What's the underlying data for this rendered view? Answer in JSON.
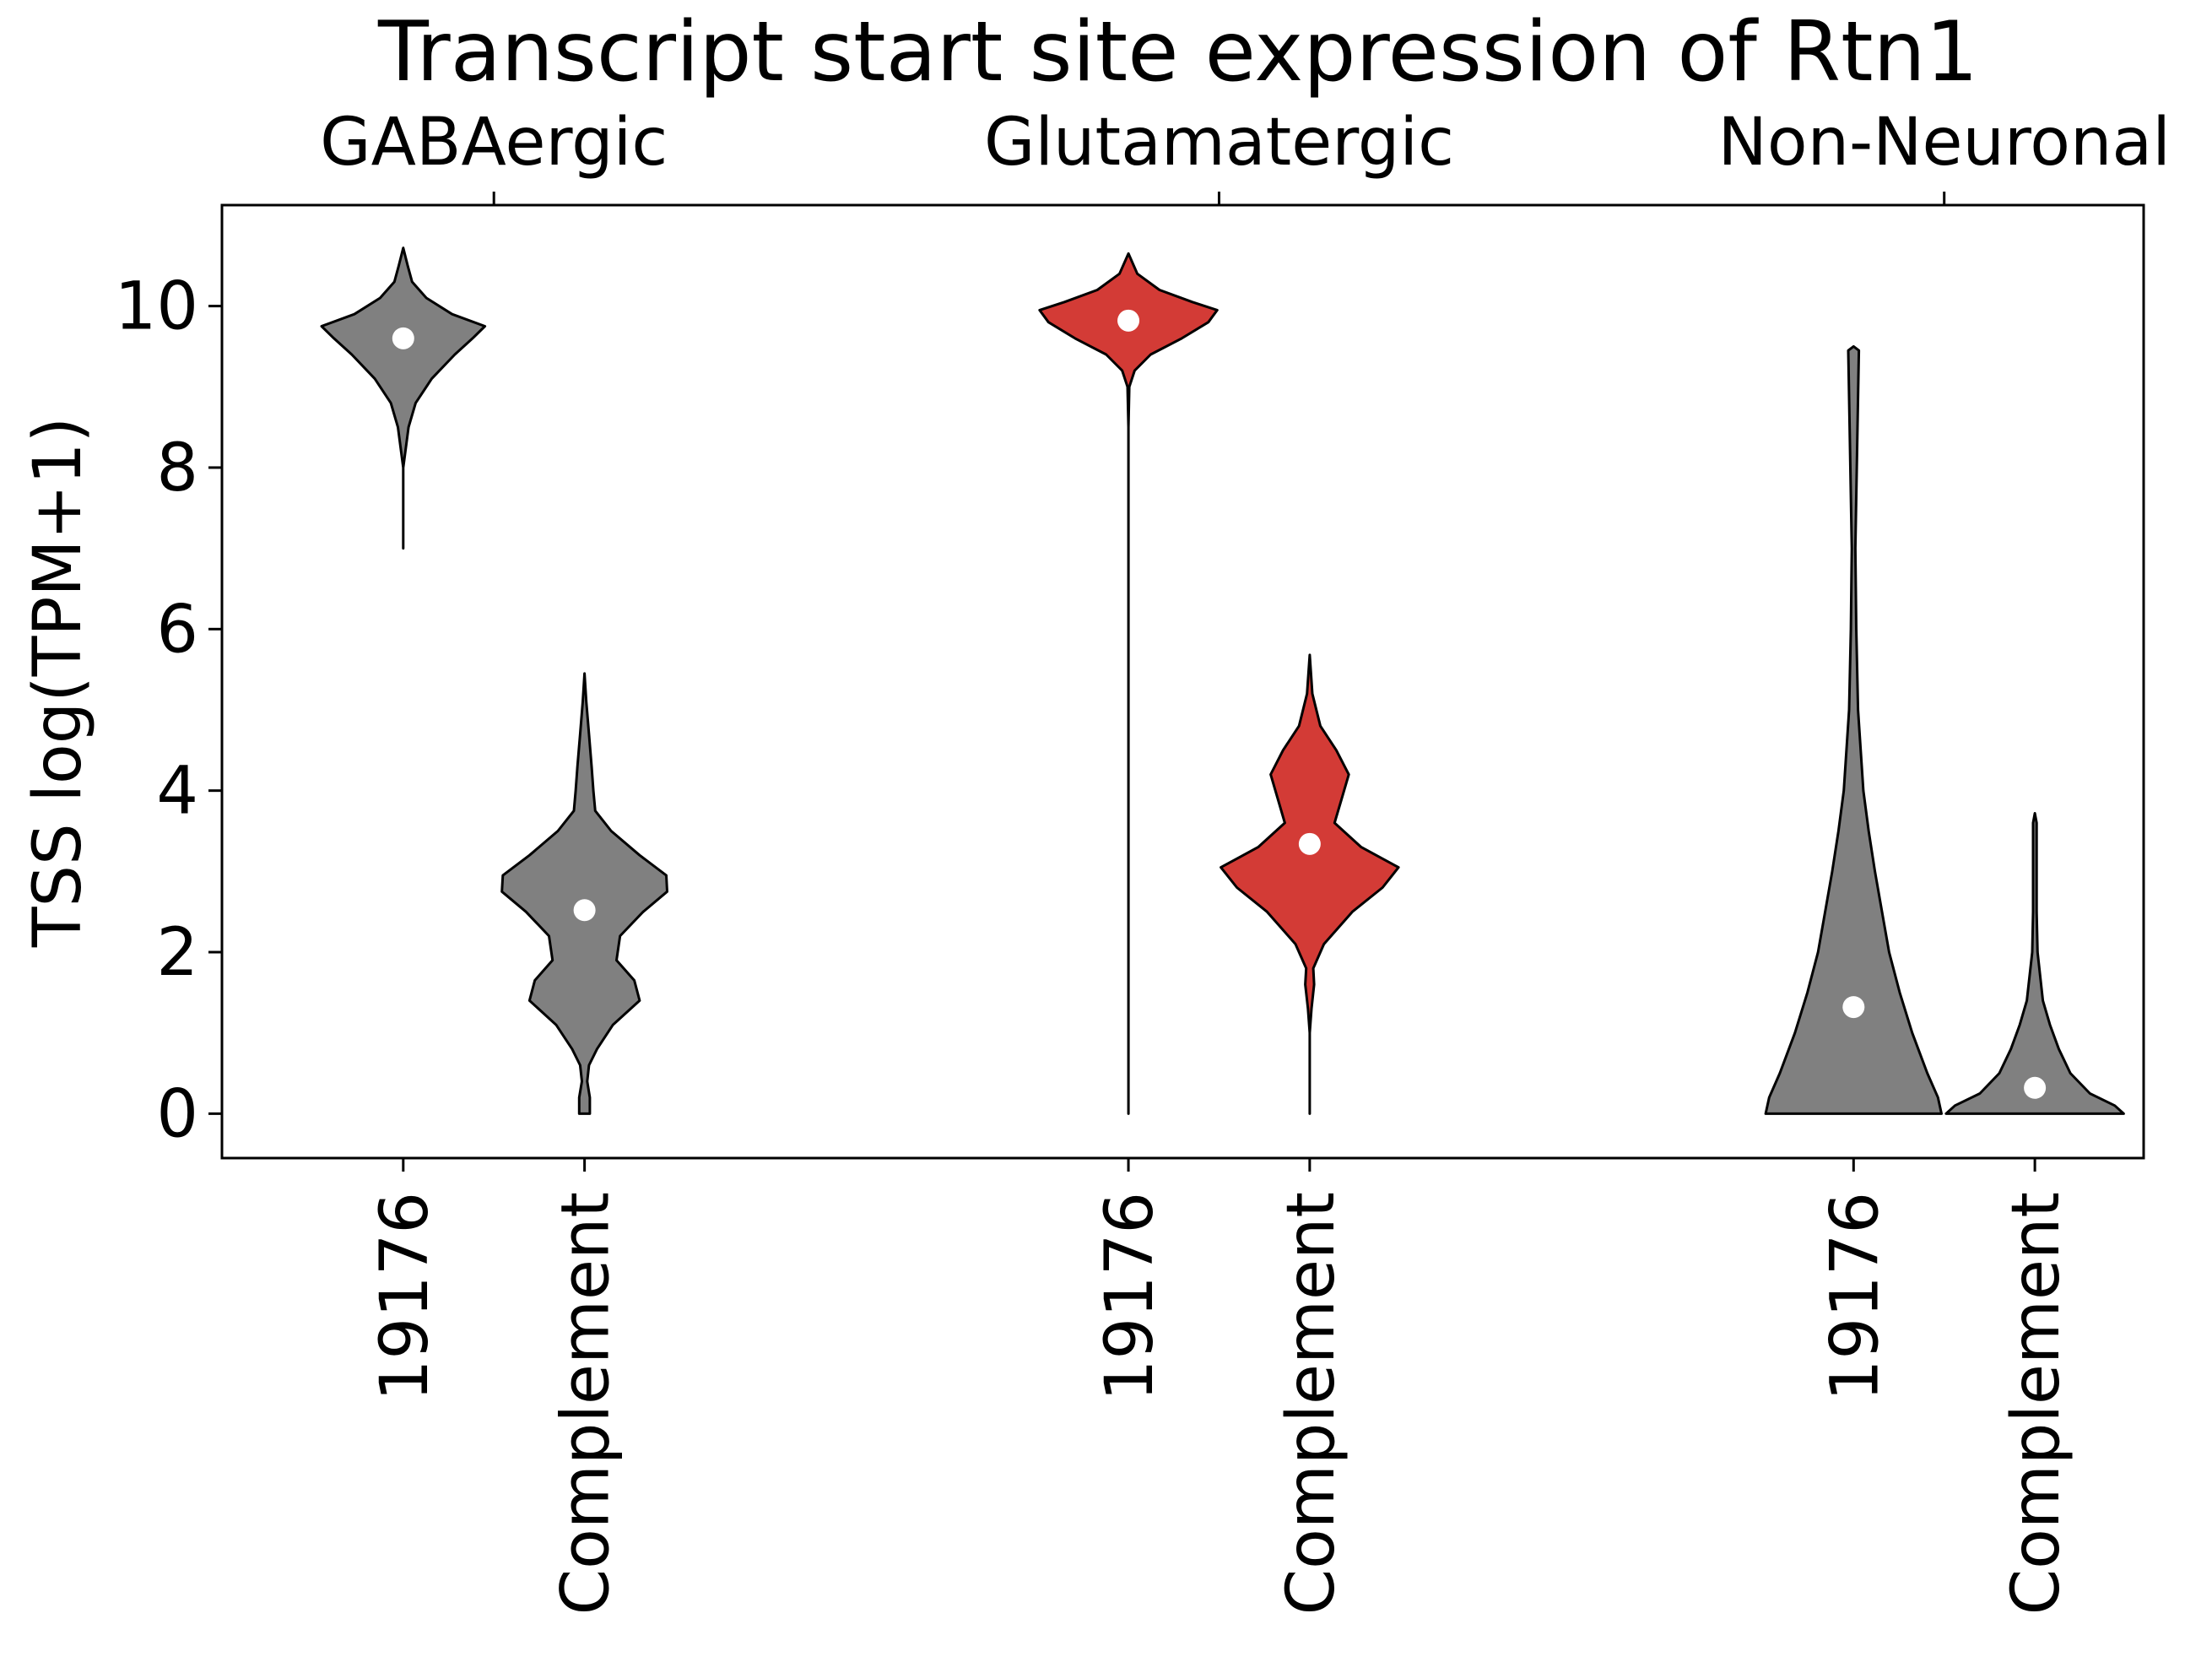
{
  "chart_data": {
    "type": "violin",
    "title": "Transcript start site expression of Rtn1",
    "ylabel": "TSS log(TPM+1)",
    "ylim": [
      -0.55,
      11.25
    ],
    "yticks": [
      0,
      2,
      4,
      6,
      8,
      10
    ],
    "groups": [
      {
        "label": "GABAergic",
        "violins": [
          {
            "label": "19176",
            "color": "#808080",
            "median": 9.6,
            "min": 7.0,
            "max": 10.72,
            "profile": [
              [
                7.0,
                0.0
              ],
              [
                8.0,
                0.0
              ],
              [
                8.5,
                0.06
              ],
              [
                8.8,
                0.14
              ],
              [
                9.1,
                0.32
              ],
              [
                9.4,
                0.58
              ],
              [
                9.6,
                0.78
              ],
              [
                9.75,
                0.92
              ],
              [
                9.9,
                0.55
              ],
              [
                10.1,
                0.26
              ],
              [
                10.3,
                0.1
              ],
              [
                10.5,
                0.05
              ],
              [
                10.72,
                0.0
              ]
            ]
          },
          {
            "label": "Complement",
            "color": "#808080",
            "median": 2.52,
            "min": 0.0,
            "max": 5.45,
            "profile": [
              [
                0.0,
                0.06
              ],
              [
                0.2,
                0.06
              ],
              [
                0.4,
                0.03
              ],
              [
                0.6,
                0.05
              ],
              [
                0.8,
                0.14
              ],
              [
                1.1,
                0.32
              ],
              [
                1.4,
                0.62
              ],
              [
                1.65,
                0.56
              ],
              [
                1.9,
                0.36
              ],
              [
                2.2,
                0.4
              ],
              [
                2.5,
                0.66
              ],
              [
                2.75,
                0.93
              ],
              [
                2.95,
                0.92
              ],
              [
                3.2,
                0.62
              ],
              [
                3.5,
                0.3
              ],
              [
                3.75,
                0.12
              ],
              [
                4.0,
                0.1
              ],
              [
                4.3,
                0.08
              ],
              [
                4.7,
                0.05
              ],
              [
                5.1,
                0.02
              ],
              [
                5.45,
                0.0
              ]
            ]
          }
        ]
      },
      {
        "label": "Glutamatergic",
        "violins": [
          {
            "label": "19176",
            "color": "#d33b36",
            "median": 9.82,
            "min": 0.0,
            "max": 10.65,
            "profile": [
              [
                0.0,
                0.0
              ],
              [
                8.5,
                0.0
              ],
              [
                9.0,
                0.01
              ],
              [
                9.2,
                0.07
              ],
              [
                9.4,
                0.25
              ],
              [
                9.6,
                0.6
              ],
              [
                9.8,
                0.9
              ],
              [
                9.95,
                1.0
              ],
              [
                10.05,
                0.72
              ],
              [
                10.2,
                0.35
              ],
              [
                10.4,
                0.1
              ],
              [
                10.65,
                0.0
              ]
            ]
          },
          {
            "label": "Complement",
            "color": "#d33b36",
            "median": 3.34,
            "min": 0.0,
            "max": 5.68,
            "profile": [
              [
                0.0,
                0.0
              ],
              [
                1.0,
                0.0
              ],
              [
                1.3,
                0.02
              ],
              [
                1.6,
                0.05
              ],
              [
                1.8,
                0.04
              ],
              [
                2.1,
                0.16
              ],
              [
                2.5,
                0.48
              ],
              [
                2.8,
                0.82
              ],
              [
                3.05,
                1.0
              ],
              [
                3.3,
                0.58
              ],
              [
                3.6,
                0.28
              ],
              [
                3.9,
                0.36
              ],
              [
                4.2,
                0.44
              ],
              [
                4.5,
                0.3
              ],
              [
                4.8,
                0.12
              ],
              [
                5.2,
                0.03
              ],
              [
                5.68,
                0.0
              ]
            ]
          }
        ]
      },
      {
        "label": "Non-Neuronal",
        "violins": [
          {
            "label": "19176",
            "color": "#808080",
            "median": 1.32,
            "min": 0.0,
            "max": 9.5,
            "profile": [
              [
                0.0,
                0.99
              ],
              [
                0.2,
                0.95
              ],
              [
                0.5,
                0.83
              ],
              [
                1.0,
                0.66
              ],
              [
                1.5,
                0.52
              ],
              [
                2.0,
                0.4
              ],
              [
                2.5,
                0.32
              ],
              [
                3.0,
                0.24
              ],
              [
                3.5,
                0.17
              ],
              [
                4.0,
                0.11
              ],
              [
                5.0,
                0.05
              ],
              [
                6.0,
                0.03
              ],
              [
                7.0,
                0.02
              ],
              [
                9.45,
                0.06
              ],
              [
                9.5,
                0.0
              ]
            ]
          },
          {
            "label": "Complement",
            "color": "#808080",
            "median": 0.32,
            "min": 0.0,
            "max": 3.72,
            "profile": [
              [
                0.0,
                1.0
              ],
              [
                0.1,
                0.9
              ],
              [
                0.25,
                0.62
              ],
              [
                0.5,
                0.4
              ],
              [
                0.8,
                0.27
              ],
              [
                1.1,
                0.17
              ],
              [
                1.4,
                0.09
              ],
              [
                2.0,
                0.03
              ],
              [
                2.5,
                0.02
              ],
              [
                3.6,
                0.02
              ],
              [
                3.72,
                0.0
              ]
            ]
          }
        ]
      }
    ],
    "grid": false
  }
}
